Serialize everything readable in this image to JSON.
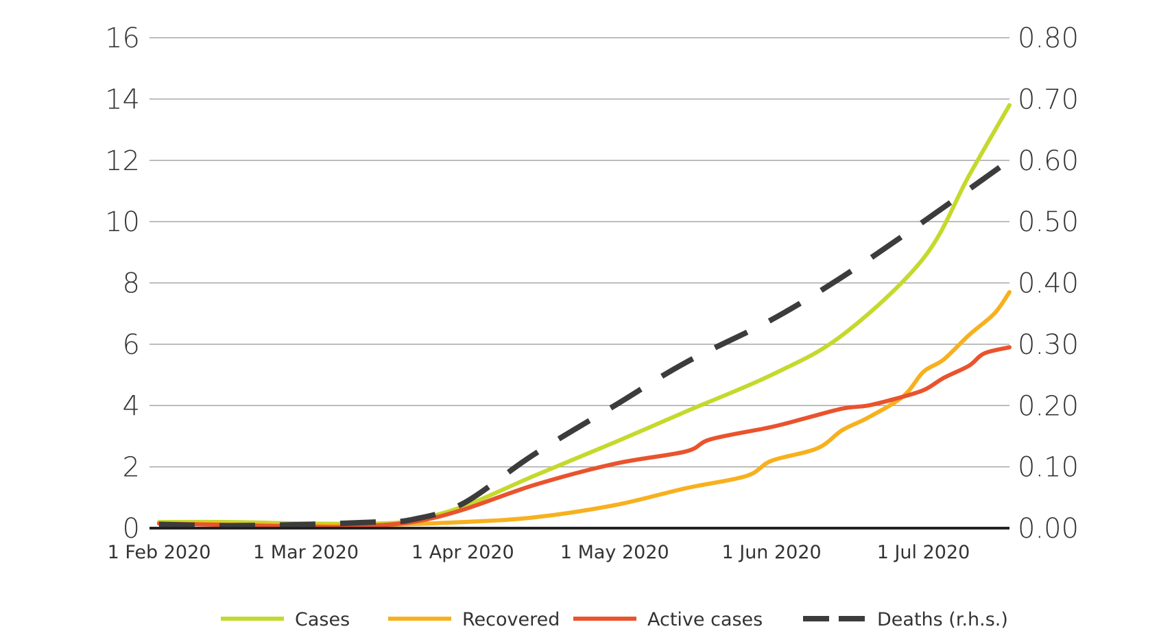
{
  "chart_data": {
    "type": "line",
    "title": "",
    "xlabel": "",
    "ylabel_left": "",
    "ylabel_right": "",
    "x_ticks": [
      "1 Feb 2020",
      "1 Mar 2020",
      "1 Apr 2020",
      "1 May 2020",
      "1 Jun 2020",
      "1 Jul 2020"
    ],
    "x_range": [
      "2020-02-01",
      "2020-07-18"
    ],
    "ylim_left": [
      0,
      16
    ],
    "ylim_right": [
      0,
      0.8
    ],
    "yticks_left": [
      "0",
      "2",
      "4",
      "6",
      "8",
      "10",
      "12",
      "14",
      "16"
    ],
    "yticks_right": [
      "0.00",
      "0.10",
      "0.20",
      "0.30",
      "0.40",
      "0.50",
      "0.60",
      "0.70",
      "0.80"
    ],
    "grid": true,
    "legend_position": "bottom",
    "series": [
      {
        "name": "Cases",
        "axis": "left",
        "color": "#c5d92d",
        "dash": "solid",
        "points": [
          [
            "2020-02-01",
            0.2
          ],
          [
            "2020-02-15",
            0.2
          ],
          [
            "2020-03-01",
            0.15
          ],
          [
            "2020-03-15",
            0.15
          ],
          [
            "2020-03-22",
            0.25
          ],
          [
            "2020-04-01",
            0.7
          ],
          [
            "2020-04-15",
            1.7
          ],
          [
            "2020-05-01",
            2.8
          ],
          [
            "2020-05-15",
            3.8
          ],
          [
            "2020-06-01",
            5.0
          ],
          [
            "2020-06-15",
            6.3
          ],
          [
            "2020-07-01",
            8.8
          ],
          [
            "2020-07-10",
            11.5
          ],
          [
            "2020-07-18",
            13.8
          ]
        ]
      },
      {
        "name": "Recovered",
        "axis": "left",
        "color": "#f7b11e",
        "dash": "solid",
        "points": [
          [
            "2020-02-01",
            0.15
          ],
          [
            "2020-03-01",
            0.1
          ],
          [
            "2020-03-15",
            0.1
          ],
          [
            "2020-04-01",
            0.2
          ],
          [
            "2020-04-15",
            0.35
          ],
          [
            "2020-05-01",
            0.75
          ],
          [
            "2020-05-15",
            1.3
          ],
          [
            "2020-05-27",
            1.7
          ],
          [
            "2020-06-01",
            2.2
          ],
          [
            "2020-06-10",
            2.6
          ],
          [
            "2020-06-15",
            3.2
          ],
          [
            "2020-06-20",
            3.6
          ],
          [
            "2020-06-27",
            4.3
          ],
          [
            "2020-07-01",
            5.1
          ],
          [
            "2020-07-05",
            5.5
          ],
          [
            "2020-07-10",
            6.3
          ],
          [
            "2020-07-15",
            7.0
          ],
          [
            "2020-07-18",
            7.7
          ]
        ]
      },
      {
        "name": "Active cases",
        "axis": "left",
        "color": "#e9532d",
        "dash": "solid",
        "points": [
          [
            "2020-02-01",
            0.15
          ],
          [
            "2020-03-01",
            0.05
          ],
          [
            "2020-03-10",
            0.05
          ],
          [
            "2020-03-22",
            0.2
          ],
          [
            "2020-04-01",
            0.6
          ],
          [
            "2020-04-15",
            1.4
          ],
          [
            "2020-05-01",
            2.1
          ],
          [
            "2020-05-15",
            2.5
          ],
          [
            "2020-05-20",
            2.9
          ],
          [
            "2020-06-01",
            3.3
          ],
          [
            "2020-06-08",
            3.6
          ],
          [
            "2020-06-15",
            3.9
          ],
          [
            "2020-06-20",
            4.0
          ],
          [
            "2020-06-25",
            4.2
          ],
          [
            "2020-07-01",
            4.5
          ],
          [
            "2020-07-05",
            4.9
          ],
          [
            "2020-07-10",
            5.3
          ],
          [
            "2020-07-13",
            5.7
          ],
          [
            "2020-07-18",
            5.9
          ]
        ]
      },
      {
        "name": "Deaths (r.h.s.)",
        "axis": "right",
        "color": "#3c3c3c",
        "dash": "dashed",
        "points": [
          [
            "2020-02-01",
            0.006
          ],
          [
            "2020-02-15",
            0.004
          ],
          [
            "2020-03-01",
            0.006
          ],
          [
            "2020-03-15",
            0.01
          ],
          [
            "2020-03-22",
            0.014
          ],
          [
            "2020-04-01",
            0.04
          ],
          [
            "2020-04-15",
            0.12
          ],
          [
            "2020-05-01",
            0.2
          ],
          [
            "2020-05-15",
            0.27
          ],
          [
            "2020-06-01",
            0.34
          ],
          [
            "2020-06-15",
            0.41
          ],
          [
            "2020-07-01",
            0.5
          ],
          [
            "2020-07-18",
            0.6
          ]
        ]
      }
    ]
  }
}
